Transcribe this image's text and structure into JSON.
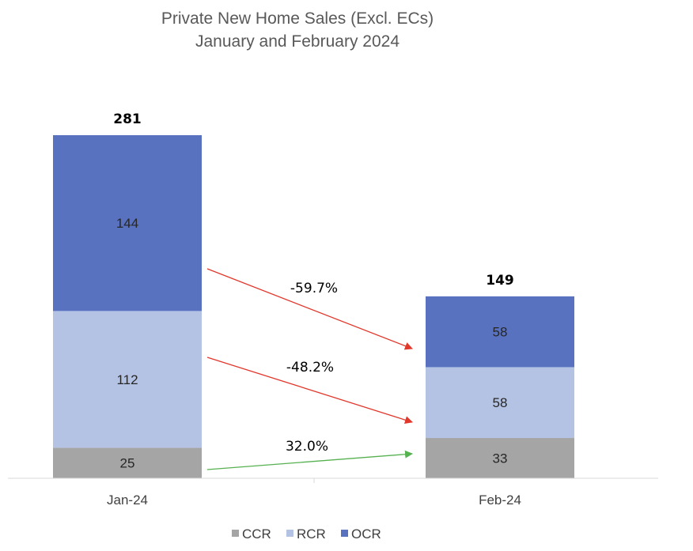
{
  "chart_data": {
    "type": "bar",
    "stacked": true,
    "title": "Private New Home Sales (Excl. ECs)",
    "subtitle": "January  and February 2024",
    "categories": [
      "Jan-24",
      "Feb-24"
    ],
    "series": [
      {
        "name": "CCR",
        "values": [
          25,
          33
        ],
        "color": "#a5a5a5"
      },
      {
        "name": "RCR",
        "values": [
          112,
          58
        ],
        "color": "#b4c3e4"
      },
      {
        "name": "OCR",
        "values": [
          144,
          58
        ],
        "color": "#5872c0"
      }
    ],
    "totals": [
      "281",
      "149"
    ],
    "ylim": [
      0,
      281
    ],
    "grid": false,
    "legend_position": "bottom",
    "annotations": [
      {
        "text": "-59.7%",
        "from_series": "OCR",
        "color": "#e2372b"
      },
      {
        "text": "-48.2%",
        "from_series": "RCR",
        "color": "#e2372b"
      },
      {
        "text": "32.0%",
        "from_series": "CCR",
        "color": "#56b150"
      }
    ]
  }
}
